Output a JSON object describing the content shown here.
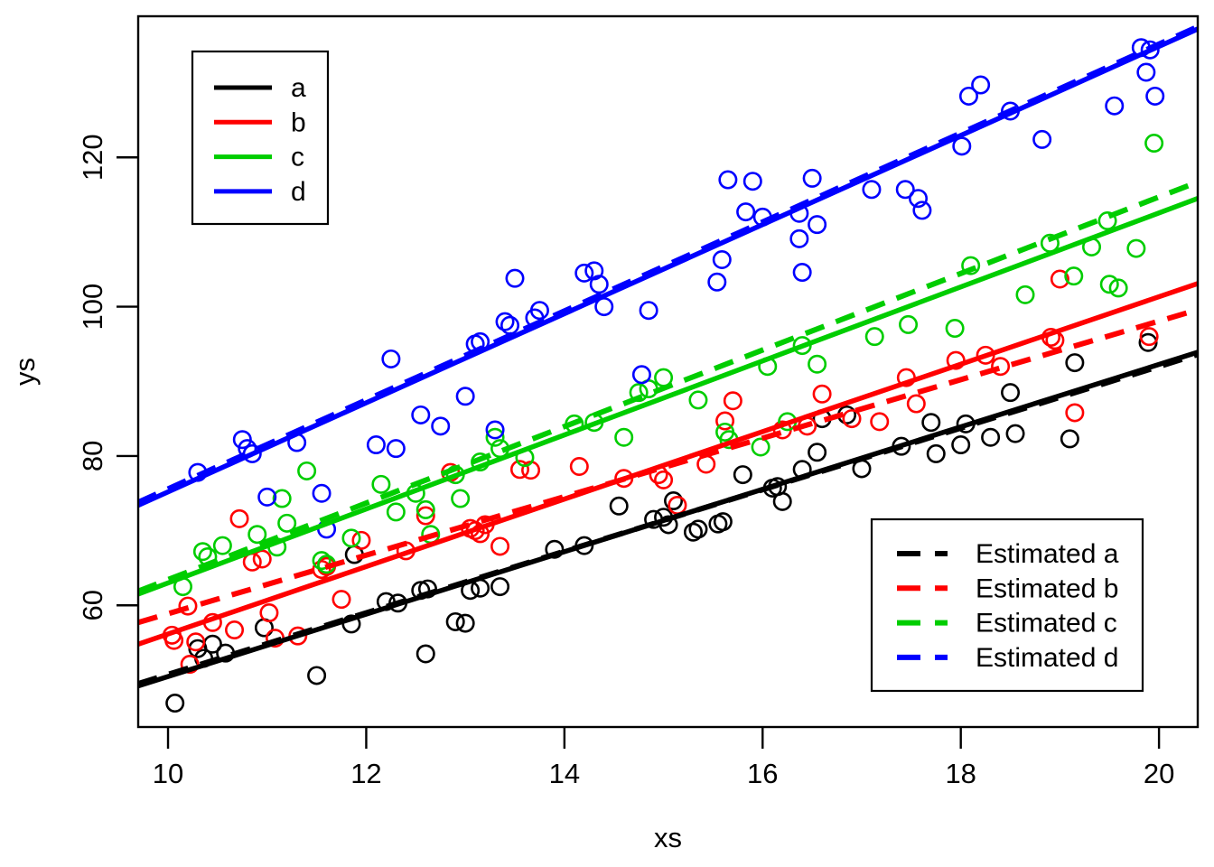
{
  "figure": {
    "background": "#ffffff",
    "axis_color": "#000000",
    "xlabel": "xs",
    "ylabel": "ys"
  },
  "legend_top_left": {
    "style": "solid-lines",
    "items": [
      {
        "label": "a",
        "color": "#000000"
      },
      {
        "label": "b",
        "color": "#FF0000"
      },
      {
        "label": "c",
        "color": "#00CD00"
      },
      {
        "label": "d",
        "color": "#0000FF"
      }
    ]
  },
  "legend_bottom_right": {
    "style": "dashed-lines",
    "items": [
      {
        "label": "Estimated a",
        "color": "#000000"
      },
      {
        "label": "Estimated b",
        "color": "#FF0000"
      },
      {
        "label": "Estimated c",
        "color": "#00CD00"
      },
      {
        "label": "Estimated d",
        "color": "#0000FF"
      }
    ]
  },
  "chart_data": {
    "type": "scatter",
    "title": "",
    "xlabel": "xs",
    "ylabel": "ys",
    "xlim": [
      9.699,
      20.391
    ],
    "ylim": [
      43.7,
      138.9
    ],
    "xticks": [
      10,
      12,
      14,
      16,
      18,
      20
    ],
    "yticks": [
      60,
      80,
      100,
      120
    ],
    "grid": false,
    "marker": "open-circle",
    "legend_positions": [
      "top-left",
      "bottom-right"
    ],
    "series": [
      {
        "name": "a",
        "color": "#000000",
        "true_line": {
          "x1": 9.699,
          "y1": 49.2,
          "x2": 20.391,
          "y2": 93.9
        },
        "estimated_line": {
          "x1": 9.699,
          "y1": 49.5,
          "x2": 20.391,
          "y2": 93.6
        },
        "points": [
          [
            10.07,
            46.9
          ],
          [
            10.3,
            54.2
          ],
          [
            10.36,
            52.9
          ],
          [
            10.45,
            54.8
          ],
          [
            10.58,
            53.6
          ],
          [
            10.97,
            57.0
          ],
          [
            11.5,
            50.6
          ],
          [
            11.85,
            57.5
          ],
          [
            11.88,
            66.8
          ],
          [
            12.2,
            60.5
          ],
          [
            12.32,
            60.3
          ],
          [
            12.55,
            62.0
          ],
          [
            12.6,
            53.5
          ],
          [
            12.62,
            62.2
          ],
          [
            12.9,
            57.8
          ],
          [
            13.0,
            57.6
          ],
          [
            13.05,
            62.0
          ],
          [
            13.15,
            62.3
          ],
          [
            13.35,
            62.5
          ],
          [
            13.9,
            67.5
          ],
          [
            14.2,
            68.0
          ],
          [
            14.55,
            73.3
          ],
          [
            14.9,
            71.5
          ],
          [
            15.0,
            71.8
          ],
          [
            15.05,
            70.8
          ],
          [
            15.1,
            74.0
          ],
          [
            15.3,
            69.8
          ],
          [
            15.35,
            70.2
          ],
          [
            15.55,
            70.9
          ],
          [
            15.6,
            71.2
          ],
          [
            15.8,
            77.5
          ],
          [
            16.1,
            75.7
          ],
          [
            16.15,
            75.9
          ],
          [
            16.2,
            73.9
          ],
          [
            16.4,
            78.2
          ],
          [
            16.55,
            80.5
          ],
          [
            16.6,
            85.0
          ],
          [
            16.85,
            85.5
          ],
          [
            17.0,
            78.3
          ],
          [
            17.4,
            81.3
          ],
          [
            17.7,
            84.5
          ],
          [
            17.75,
            80.3
          ],
          [
            18.0,
            81.5
          ],
          [
            18.05,
            84.3
          ],
          [
            18.3,
            82.5
          ],
          [
            18.5,
            88.5
          ],
          [
            18.55,
            83.0
          ],
          [
            19.1,
            82.3
          ],
          [
            19.15,
            92.5
          ],
          [
            19.89,
            95.2
          ]
        ]
      },
      {
        "name": "b",
        "color": "#FF0000",
        "true_line": {
          "x1": 9.699,
          "y1": 54.8,
          "x2": 20.391,
          "y2": 103.1
        },
        "estimated_line": {
          "x1": 9.699,
          "y1": 57.7,
          "x2": 20.391,
          "y2": 99.6
        },
        "points": [
          [
            10.04,
            56.0
          ],
          [
            10.06,
            55.3
          ],
          [
            10.2,
            59.9
          ],
          [
            10.22,
            52.1
          ],
          [
            10.28,
            55.1
          ],
          [
            10.45,
            57.7
          ],
          [
            10.67,
            56.7
          ],
          [
            10.72,
            71.6
          ],
          [
            10.85,
            65.8
          ],
          [
            10.95,
            66.2
          ],
          [
            11.02,
            59.0
          ],
          [
            11.08,
            55.6
          ],
          [
            11.31,
            55.9
          ],
          [
            11.55,
            64.8
          ],
          [
            11.6,
            65.2
          ],
          [
            11.75,
            60.8
          ],
          [
            11.95,
            68.7
          ],
          [
            12.4,
            67.3
          ],
          [
            12.6,
            72.0
          ],
          [
            12.85,
            77.8
          ],
          [
            13.05,
            70.3
          ],
          [
            13.1,
            70.0
          ],
          [
            13.15,
            69.6
          ],
          [
            13.2,
            70.8
          ],
          [
            13.35,
            67.9
          ],
          [
            13.55,
            78.2
          ],
          [
            13.66,
            78.1
          ],
          [
            14.15,
            78.6
          ],
          [
            14.6,
            77.0
          ],
          [
            14.95,
            77.5
          ],
          [
            15.0,
            76.8
          ],
          [
            15.14,
            73.4
          ],
          [
            15.43,
            78.9
          ],
          [
            15.62,
            84.7
          ],
          [
            15.7,
            87.4
          ],
          [
            16.2,
            83.5
          ],
          [
            16.45,
            84.0
          ],
          [
            16.6,
            88.3
          ],
          [
            16.9,
            85.0
          ],
          [
            17.18,
            84.6
          ],
          [
            17.45,
            90.5
          ],
          [
            17.55,
            87.0
          ],
          [
            17.95,
            92.8
          ],
          [
            18.25,
            93.5
          ],
          [
            18.4,
            92.0
          ],
          [
            18.91,
            95.9
          ],
          [
            18.95,
            95.5
          ],
          [
            19.0,
            103.7
          ],
          [
            19.15,
            85.8
          ],
          [
            19.9,
            96.0
          ]
        ]
      },
      {
        "name": "c",
        "color": "#00CD00",
        "true_line": {
          "x1": 9.699,
          "y1": 61.5,
          "x2": 20.391,
          "y2": 114.5
        },
        "estimated_line": {
          "x1": 9.699,
          "y1": 61.9,
          "x2": 20.391,
          "y2": 116.7
        },
        "points": [
          [
            10.15,
            62.5
          ],
          [
            10.35,
            67.2
          ],
          [
            10.4,
            66.5
          ],
          [
            10.55,
            68.0
          ],
          [
            10.9,
            69.5
          ],
          [
            11.1,
            67.8
          ],
          [
            11.15,
            74.3
          ],
          [
            11.2,
            71.0
          ],
          [
            11.4,
            78.0
          ],
          [
            11.55,
            66.0
          ],
          [
            11.6,
            65.5
          ],
          [
            11.85,
            69.0
          ],
          [
            12.15,
            76.2
          ],
          [
            12.3,
            72.5
          ],
          [
            12.5,
            75.0
          ],
          [
            12.6,
            72.8
          ],
          [
            12.65,
            69.5
          ],
          [
            12.9,
            77.5
          ],
          [
            12.95,
            74.3
          ],
          [
            13.15,
            79.2
          ],
          [
            13.3,
            82.5
          ],
          [
            13.35,
            81.0
          ],
          [
            13.6,
            79.8
          ],
          [
            14.1,
            84.3
          ],
          [
            14.3,
            84.5
          ],
          [
            14.6,
            82.5
          ],
          [
            14.75,
            88.5
          ],
          [
            14.85,
            89.0
          ],
          [
            15.0,
            90.5
          ],
          [
            15.35,
            87.5
          ],
          [
            15.62,
            83.2
          ],
          [
            15.66,
            82.2
          ],
          [
            15.98,
            81.2
          ],
          [
            16.05,
            92.0
          ],
          [
            16.25,
            84.6
          ],
          [
            16.4,
            94.8
          ],
          [
            16.55,
            92.3
          ],
          [
            17.13,
            96.0
          ],
          [
            17.47,
            97.6
          ],
          [
            17.94,
            97.1
          ],
          [
            18.1,
            105.5
          ],
          [
            18.65,
            101.6
          ],
          [
            18.9,
            108.5
          ],
          [
            19.14,
            104.1
          ],
          [
            19.32,
            108.0
          ],
          [
            19.48,
            111.5
          ],
          [
            19.5,
            103.0
          ],
          [
            19.59,
            102.5
          ],
          [
            19.77,
            107.8
          ],
          [
            19.95,
            121.9
          ]
        ]
      },
      {
        "name": "d",
        "color": "#0000FF",
        "true_line": {
          "x1": 9.699,
          "y1": 73.4,
          "x2": 20.391,
          "y2": 137.2
        },
        "estimated_line": {
          "x1": 9.699,
          "y1": 73.8,
          "x2": 20.391,
          "y2": 137.5
        },
        "points": [
          [
            10.3,
            77.8
          ],
          [
            10.75,
            82.2
          ],
          [
            10.8,
            81.0
          ],
          [
            10.85,
            80.3
          ],
          [
            11.0,
            74.5
          ],
          [
            11.3,
            81.8
          ],
          [
            11.55,
            75.0
          ],
          [
            11.6,
            70.2
          ],
          [
            12.1,
            81.5
          ],
          [
            12.25,
            93.0
          ],
          [
            12.3,
            81.0
          ],
          [
            12.55,
            85.5
          ],
          [
            12.75,
            84.0
          ],
          [
            13.0,
            88.0
          ],
          [
            13.1,
            95.0
          ],
          [
            13.15,
            95.3
          ],
          [
            13.3,
            83.5
          ],
          [
            13.4,
            98.0
          ],
          [
            13.45,
            97.5
          ],
          [
            13.5,
            103.8
          ],
          [
            13.7,
            98.5
          ],
          [
            13.75,
            99.5
          ],
          [
            14.2,
            104.5
          ],
          [
            14.3,
            104.8
          ],
          [
            14.35,
            103.0
          ],
          [
            14.4,
            100.0
          ],
          [
            14.78,
            90.9
          ],
          [
            14.85,
            99.5
          ],
          [
            15.54,
            103.3
          ],
          [
            15.59,
            106.3
          ],
          [
            15.65,
            117.0
          ],
          [
            15.83,
            112.7
          ],
          [
            15.9,
            116.8
          ],
          [
            16.0,
            112.0
          ],
          [
            16.37,
            112.5
          ],
          [
            16.37,
            109.1
          ],
          [
            16.4,
            104.6
          ],
          [
            16.5,
            117.2
          ],
          [
            16.55,
            111.0
          ],
          [
            17.1,
            115.7
          ],
          [
            17.44,
            115.7
          ],
          [
            17.57,
            114.5
          ],
          [
            17.61,
            112.9
          ],
          [
            18.01,
            121.5
          ],
          [
            18.08,
            128.2
          ],
          [
            18.2,
            129.7
          ],
          [
            18.5,
            126.2
          ],
          [
            18.82,
            122.4
          ],
          [
            19.55,
            126.9
          ],
          [
            19.82,
            134.7
          ],
          [
            19.87,
            131.4
          ],
          [
            19.91,
            134.4
          ],
          [
            19.96,
            128.2
          ]
        ]
      }
    ]
  }
}
